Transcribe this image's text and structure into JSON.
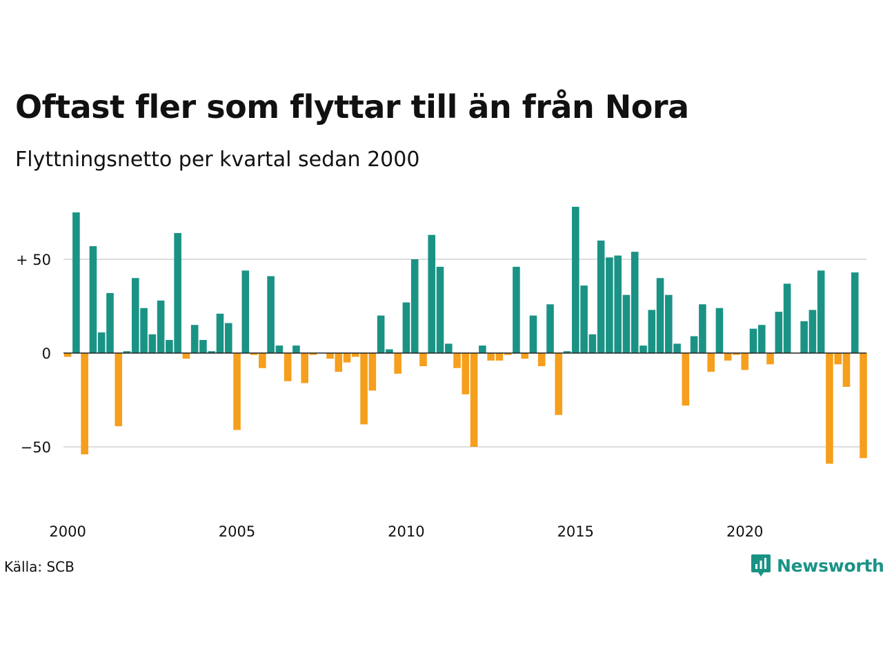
{
  "title": "Oftast fler som flyttar till än från Nora",
  "subtitle": "Flyttningsnetto per kvartal sedan 2000",
  "source": "Källa: SCB",
  "brand": {
    "name": "Newsworthy",
    "icon": "newsworthy-logo-icon",
    "color": "#1a9385"
  },
  "colors": {
    "positive": "#1a9385",
    "negative": "#f59f1c",
    "grid": "#dddddd",
    "zero": "#222222"
  },
  "chart_data": {
    "type": "bar",
    "title": "Oftast fler som flyttar till än från Nora",
    "subtitle": "Flyttningsnetto per kvartal sedan 2000",
    "xlabel": "",
    "ylabel": "",
    "ylim": [
      -70,
      80
    ],
    "yticks": [
      50,
      0,
      -50
    ],
    "ytick_labels": [
      "+ 50",
      "0",
      "−50"
    ],
    "xtick_years": [
      2000,
      2005,
      2010,
      2015,
      2020
    ],
    "xtick_labels": [
      "2000",
      "2005",
      "2010",
      "2015",
      "2020"
    ],
    "grid": true,
    "start": "2000 Q1",
    "values": [
      -2,
      75,
      -54,
      57,
      11,
      32,
      -39,
      1,
      40,
      24,
      10,
      28,
      7,
      64,
      -3,
      15,
      7,
      1,
      21,
      16,
      -41,
      44,
      -1,
      -8,
      41,
      4,
      -15,
      4,
      -16,
      -1,
      0,
      -3,
      -10,
      -5,
      -2,
      -38,
      -20,
      20,
      2,
      -11,
      27,
      50,
      -7,
      63,
      46,
      5,
      -8,
      -22,
      -50,
      4,
      -4,
      -4,
      -1,
      46,
      -3,
      20,
      -7,
      26,
      -33,
      1,
      78,
      36,
      10,
      60,
      51,
      52,
      31,
      54,
      4,
      23,
      40,
      31,
      5,
      -28,
      9,
      26,
      -10,
      24,
      -4,
      -1,
      -9,
      13,
      15,
      -6,
      22,
      37,
      0,
      17,
      23,
      44,
      -59,
      -6,
      -18,
      43,
      -56
    ]
  }
}
